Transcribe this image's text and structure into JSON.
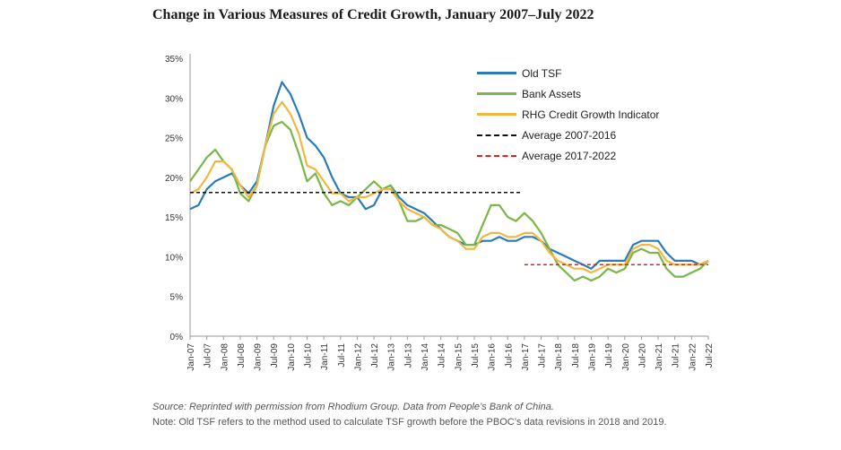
{
  "title": "Change in Various Measures of Credit Growth, January 2007–July 2022",
  "source": "Source: Reprinted with permission from Rhodium Group. Data from People’s Bank of China.",
  "note": "Note: Old TSF refers to the method used to calculate TSF growth before the PBOC’s data revisions in 2018 and 2019.",
  "colors": {
    "old_tsf": "#2b7bb9",
    "bank_assets": "#7ab648",
    "rhg": "#f0b840",
    "avg1": "#111111",
    "avg2": "#e02020"
  },
  "chart_data": {
    "type": "line",
    "title": "Change in Various Measures of Credit Growth, January 2007–July 2022",
    "xlabel": "",
    "ylabel": "",
    "ylim": [
      0,
      35
    ],
    "yticks": [
      "0%",
      "5%",
      "10%",
      "15%",
      "20%",
      "25%",
      "30%",
      "35%"
    ],
    "xticks": [
      "Jan-07",
      "Jul-07",
      "Jan-08",
      "Jul-08",
      "Jan-09",
      "Jul-09",
      "Jan-10",
      "Jul-10",
      "Jan-11",
      "Jul-11",
      "Jan-12",
      "Jul-12",
      "Jan-13",
      "Jul-13",
      "Jan-14",
      "Jul-14",
      "Jan-15",
      "Jul-15",
      "Jan-16",
      "Jul-16",
      "Jan-17",
      "Jul-17",
      "Jan-18",
      "Jul-18",
      "Jan-19",
      "Jul-19",
      "Jan-20",
      "Jul-20",
      "Jan-21",
      "Jul-21",
      "Jan-22",
      "Jul-22"
    ],
    "grid": false,
    "legend_position": "top-right",
    "series": [
      {
        "name": "Old TSF",
        "key": "old_tsf",
        "dash": "solid",
        "x": [
          "2007-01",
          "2007-04",
          "2007-07",
          "2007-10",
          "2008-01",
          "2008-04",
          "2008-07",
          "2008-10",
          "2009-01",
          "2009-04",
          "2009-07",
          "2009-10",
          "2010-01",
          "2010-04",
          "2010-07",
          "2010-10",
          "2011-01",
          "2011-04",
          "2011-07",
          "2011-10",
          "2012-01",
          "2012-04",
          "2012-07",
          "2012-10",
          "2013-01",
          "2013-04",
          "2013-07",
          "2013-10",
          "2014-01",
          "2014-04",
          "2014-07",
          "2014-10",
          "2015-01",
          "2015-04",
          "2015-07",
          "2015-10",
          "2016-01",
          "2016-04",
          "2016-07",
          "2016-10",
          "2017-01",
          "2017-04",
          "2017-07",
          "2017-10",
          "2018-01",
          "2018-04",
          "2018-07",
          "2018-10",
          "2019-01",
          "2019-04",
          "2019-07",
          "2019-10",
          "2020-01",
          "2020-04",
          "2020-07",
          "2020-10",
          "2021-01",
          "2021-04",
          "2021-07",
          "2021-10",
          "2022-01",
          "2022-04",
          "2022-07"
        ],
        "values": [
          16.0,
          16.5,
          18.5,
          19.5,
          20.0,
          20.5,
          19.0,
          18.0,
          19.5,
          24.0,
          29.0,
          32.0,
          30.5,
          28.0,
          25.0,
          24.0,
          22.5,
          20.0,
          18.0,
          17.5,
          17.5,
          16.0,
          16.5,
          18.5,
          19.0,
          17.5,
          16.5,
          16.0,
          15.5,
          14.5,
          13.5,
          12.5,
          12.0,
          11.5,
          11.5,
          12.0,
          12.0,
          12.5,
          12.0,
          12.0,
          12.5,
          12.5,
          12.0,
          11.0,
          10.5,
          10.0,
          9.5,
          9.0,
          8.5,
          9.5,
          9.5,
          9.5,
          9.5,
          11.5,
          12.0,
          12.0,
          12.0,
          10.5,
          9.5,
          9.5,
          9.5,
          9.0,
          9.5
        ]
      },
      {
        "name": "Bank Assets",
        "key": "bank_assets",
        "dash": "solid",
        "x": [
          "2007-01",
          "2007-04",
          "2007-07",
          "2007-10",
          "2008-01",
          "2008-04",
          "2008-07",
          "2008-10",
          "2009-01",
          "2009-04",
          "2009-07",
          "2009-10",
          "2010-01",
          "2010-04",
          "2010-07",
          "2010-10",
          "2011-01",
          "2011-04",
          "2011-07",
          "2011-10",
          "2012-01",
          "2012-04",
          "2012-07",
          "2012-10",
          "2013-01",
          "2013-04",
          "2013-07",
          "2013-10",
          "2014-01",
          "2014-04",
          "2014-07",
          "2014-10",
          "2015-01",
          "2015-04",
          "2015-07",
          "2015-10",
          "2016-01",
          "2016-04",
          "2016-07",
          "2016-10",
          "2017-01",
          "2017-04",
          "2017-07",
          "2017-10",
          "2018-01",
          "2018-04",
          "2018-07",
          "2018-10",
          "2019-01",
          "2019-04",
          "2019-07",
          "2019-10",
          "2020-01",
          "2020-04",
          "2020-07",
          "2020-10",
          "2021-01",
          "2021-04",
          "2021-07",
          "2021-10",
          "2022-01",
          "2022-04",
          "2022-07"
        ],
        "values": [
          19.5,
          21.0,
          22.5,
          23.5,
          22.0,
          21.0,
          18.0,
          17.0,
          19.0,
          24.0,
          26.5,
          27.0,
          26.0,
          23.0,
          19.5,
          20.5,
          18.0,
          16.5,
          17.0,
          16.5,
          17.5,
          18.5,
          19.5,
          18.5,
          19.0,
          17.0,
          14.5,
          14.5,
          15.0,
          14.0,
          14.0,
          13.5,
          13.0,
          11.5,
          11.5,
          14.0,
          16.5,
          16.5,
          15.0,
          14.5,
          15.5,
          14.5,
          13.0,
          11.0,
          9.0,
          8.0,
          7.0,
          7.5,
          7.0,
          7.5,
          8.5,
          8.0,
          8.5,
          10.5,
          11.0,
          10.5,
          10.5,
          8.5,
          7.5,
          7.5,
          8.0,
          8.5,
          9.5
        ]
      },
      {
        "name": "RHG Credit Growth Indicator",
        "key": "rhg",
        "dash": "solid",
        "x": [
          "2007-01",
          "2007-04",
          "2007-07",
          "2007-10",
          "2008-01",
          "2008-04",
          "2008-07",
          "2008-10",
          "2009-01",
          "2009-04",
          "2009-07",
          "2009-10",
          "2010-01",
          "2010-04",
          "2010-07",
          "2010-10",
          "2011-01",
          "2011-04",
          "2011-07",
          "2011-10",
          "2012-01",
          "2012-04",
          "2012-07",
          "2012-10",
          "2013-01",
          "2013-04",
          "2013-07",
          "2013-10",
          "2014-01",
          "2014-04",
          "2014-07",
          "2014-10",
          "2015-01",
          "2015-04",
          "2015-07",
          "2015-10",
          "2016-01",
          "2016-04",
          "2016-07",
          "2016-10",
          "2017-01",
          "2017-04",
          "2017-07",
          "2017-10",
          "2018-01",
          "2018-04",
          "2018-07",
          "2018-10",
          "2019-01",
          "2019-04",
          "2019-07",
          "2019-10",
          "2020-01",
          "2020-04",
          "2020-07",
          "2020-10",
          "2021-01",
          "2021-04",
          "2021-07",
          "2021-10",
          "2022-01",
          "2022-04",
          "2022-07"
        ],
        "values": [
          18.0,
          18.5,
          20.0,
          22.0,
          22.0,
          21.0,
          19.0,
          17.5,
          19.0,
          24.0,
          28.0,
          29.5,
          28.0,
          25.5,
          21.5,
          21.0,
          19.5,
          18.0,
          18.0,
          17.0,
          17.5,
          17.5,
          18.0,
          18.5,
          18.5,
          17.0,
          16.0,
          15.5,
          15.0,
          14.0,
          13.5,
          12.5,
          12.0,
          11.0,
          11.0,
          12.5,
          13.0,
          13.0,
          12.5,
          12.5,
          13.0,
          13.0,
          12.0,
          10.5,
          9.5,
          9.0,
          8.5,
          8.5,
          8.0,
          8.5,
          9.0,
          9.0,
          9.0,
          11.0,
          11.5,
          11.5,
          11.0,
          9.5,
          9.0,
          9.0,
          9.0,
          9.0,
          9.5
        ]
      },
      {
        "name": "Average 2007-2016",
        "key": "avg1",
        "dash": "dashed",
        "x": [
          "2007-01",
          "2016-12"
        ],
        "values": [
          18.1,
          18.1
        ]
      },
      {
        "name": "Average 2017-2022",
        "key": "avg2",
        "dash": "dashed",
        "x": [
          "2017-01",
          "2022-07"
        ],
        "values": [
          9.0,
          9.0
        ]
      }
    ]
  }
}
